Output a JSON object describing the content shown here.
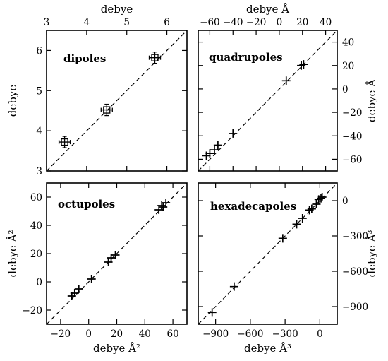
{
  "chart_data": [
    {
      "type": "scatter",
      "panel": "dipoles",
      "label": "dipoles",
      "marker": "square-with-error-bars",
      "xlabel": "debye",
      "ylabel": "debye",
      "x_axis_position": "top",
      "y_axis_position": "left",
      "xlim": [
        3,
        6.5
      ],
      "ylim": [
        3,
        6.5
      ],
      "xticks": [
        3,
        4,
        5,
        6
      ],
      "yticks": [
        3,
        4,
        5,
        6
      ],
      "reference_line": "y = x (dashed)",
      "points": [
        {
          "x": 3.45,
          "y": 3.72
        },
        {
          "x": 4.5,
          "y": 4.52
        },
        {
          "x": 5.7,
          "y": 5.82
        }
      ]
    },
    {
      "type": "scatter",
      "panel": "quadrupoles",
      "label": "quadrupoles",
      "marker": "plus",
      "xlabel": "debye Å",
      "ylabel": "debye Å",
      "x_axis_position": "top",
      "y_axis_position": "right",
      "xlim": [
        -70,
        50
      ],
      "ylim": [
        -70,
        50
      ],
      "xticks": [
        -60,
        -40,
        -20,
        0,
        20,
        40
      ],
      "yticks": [
        -60,
        -40,
        -20,
        0,
        20,
        40
      ],
      "reference_line": "y = x (dashed)",
      "points": [
        {
          "x": -63,
          "y": -57
        },
        {
          "x": -60,
          "y": -55
        },
        {
          "x": -56,
          "y": -52
        },
        {
          "x": -53,
          "y": -48
        },
        {
          "x": -40,
          "y": -38
        },
        {
          "x": 6,
          "y": 7
        },
        {
          "x": 19,
          "y": 20
        },
        {
          "x": 21,
          "y": 21
        }
      ]
    },
    {
      "type": "scatter",
      "panel": "octupoles",
      "label": "octupoles",
      "marker": "plus",
      "xlabel": "debye Å²",
      "ylabel": "debye Å²",
      "x_axis_position": "bottom",
      "y_axis_position": "left",
      "xlim": [
        -30,
        70
      ],
      "ylim": [
        -30,
        70
      ],
      "xticks": [
        -20,
        0,
        20,
        40,
        60
      ],
      "yticks": [
        -20,
        0,
        20,
        40,
        60
      ],
      "reference_line": "y = x (dashed)",
      "points": [
        {
          "x": -12,
          "y": -10
        },
        {
          "x": -10,
          "y": -8
        },
        {
          "x": -7,
          "y": -5
        },
        {
          "x": 2,
          "y": 2
        },
        {
          "x": 14,
          "y": 14
        },
        {
          "x": 16,
          "y": 17
        },
        {
          "x": 19,
          "y": 19
        },
        {
          "x": 50,
          "y": 51
        },
        {
          "x": 52,
          "y": 54
        },
        {
          "x": 53,
          "y": 53
        },
        {
          "x": 55,
          "y": 56
        }
      ]
    },
    {
      "type": "scatter",
      "panel": "hexadecapoles",
      "label": "hexadecapoles",
      "marker": "plus",
      "xlabel": "debye Å³",
      "ylabel": "debye Å³",
      "x_axis_position": "bottom",
      "y_axis_position": "right",
      "xlim": [
        -1050,
        150
      ],
      "ylim": [
        -1050,
        150
      ],
      "xticks": [
        -900,
        -600,
        -300,
        0
      ],
      "yticks": [
        -900,
        -600,
        -300,
        0
      ],
      "reference_line": "y = x (dashed)",
      "points": [
        {
          "x": -930,
          "y": -950
        },
        {
          "x": -740,
          "y": -730
        },
        {
          "x": -320,
          "y": -320
        },
        {
          "x": -200,
          "y": -200
        },
        {
          "x": -150,
          "y": -150
        },
        {
          "x": -90,
          "y": -80
        },
        {
          "x": -70,
          "y": -70
        },
        {
          "x": -30,
          "y": -30
        },
        {
          "x": -10,
          "y": 10
        },
        {
          "x": 10,
          "y": 20
        },
        {
          "x": 20,
          "y": 30
        }
      ]
    }
  ]
}
